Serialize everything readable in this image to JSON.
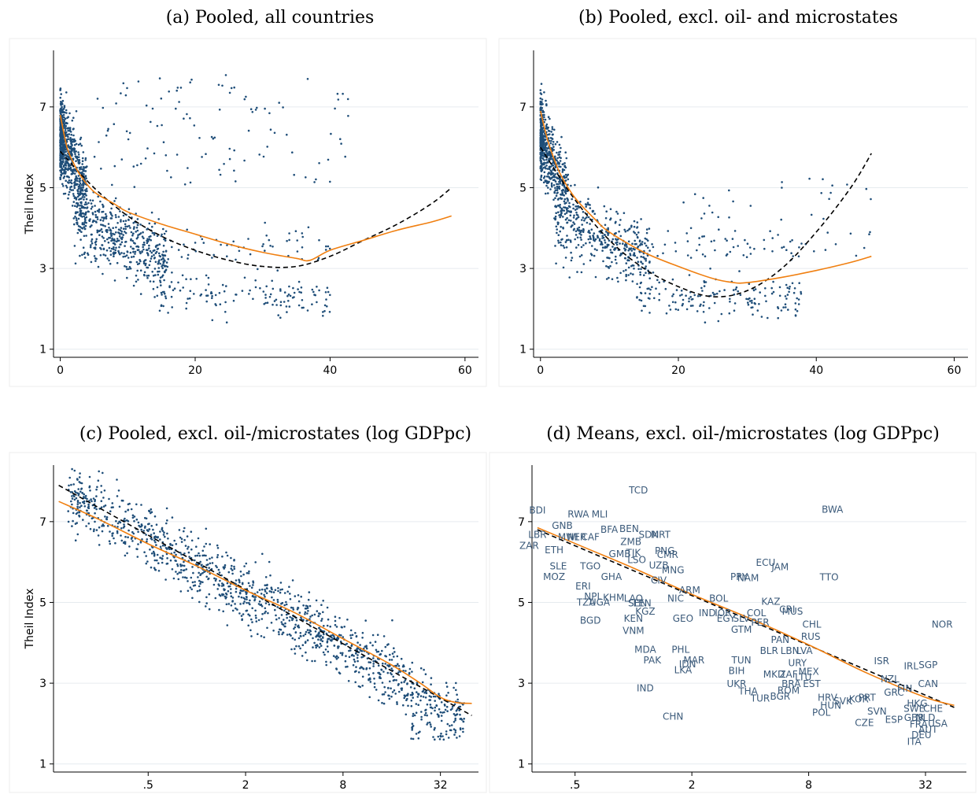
{
  "chart_data": [
    {
      "type": "scatter",
      "title": "(a) Pooled, all countries",
      "xlabel": "",
      "ylabel": "Theil Index",
      "xlim": [
        -1,
        62
      ],
      "ylim": [
        0.8,
        8.4
      ],
      "x_ticks": [
        "0",
        "20",
        "40",
        "60"
      ],
      "x_tick_values": [
        0,
        20,
        40,
        60
      ],
      "y_ticks": [
        "1",
        "3",
        "5",
        "7"
      ],
      "y_tick_values": [
        1,
        3,
        5,
        7
      ],
      "grid": true,
      "series": [
        {
          "kind": "quadratic-fit",
          "color": "#000000",
          "dashed": true,
          "x": [
            0,
            5,
            10,
            15,
            20,
            25,
            30,
            35,
            40,
            45,
            50,
            55,
            58
          ],
          "y": [
            5.9,
            5.0,
            4.3,
            3.8,
            3.45,
            3.2,
            3.05,
            3.05,
            3.3,
            3.7,
            4.1,
            4.6,
            5.0
          ]
        },
        {
          "kind": "lowess",
          "color": "#f07f10",
          "x": [
            0,
            1,
            2,
            3,
            5,
            8,
            10,
            15,
            20,
            25,
            30,
            35,
            37,
            40,
            45,
            50,
            55,
            58
          ],
          "y": [
            6.8,
            6.0,
            5.6,
            5.3,
            4.9,
            4.6,
            4.4,
            4.1,
            3.85,
            3.6,
            3.4,
            3.25,
            3.2,
            3.45,
            3.7,
            3.95,
            4.15,
            4.3
          ]
        }
      ]
    },
    {
      "type": "scatter",
      "title": "(b) Pooled, excl. oil- and microstates",
      "xlabel": "",
      "ylabel": "",
      "xlim": [
        -1,
        62
      ],
      "ylim": [
        0.8,
        8.4
      ],
      "x_ticks": [
        "0",
        "20",
        "40",
        "60"
      ],
      "x_tick_values": [
        0,
        20,
        40,
        60
      ],
      "y_ticks": [
        "1",
        "3",
        "5",
        "7"
      ],
      "y_tick_values": [
        1,
        3,
        5,
        7
      ],
      "grid": true,
      "series": [
        {
          "kind": "quadratic-fit",
          "color": "#000000",
          "dashed": true,
          "x": [
            0,
            5,
            10,
            15,
            20,
            25,
            30,
            35,
            40,
            45,
            48
          ],
          "y": [
            6.0,
            4.7,
            3.7,
            3.0,
            2.55,
            2.3,
            2.45,
            3.0,
            3.9,
            5.0,
            5.85
          ]
        },
        {
          "kind": "lowess",
          "color": "#f07f10",
          "x": [
            0,
            1,
            2,
            3,
            5,
            8,
            10,
            15,
            20,
            25,
            28,
            30,
            35,
            40,
            45,
            48
          ],
          "y": [
            6.9,
            6.2,
            5.7,
            5.3,
            4.75,
            4.2,
            3.9,
            3.4,
            3.05,
            2.75,
            2.65,
            2.65,
            2.78,
            2.95,
            3.15,
            3.3
          ]
        }
      ]
    },
    {
      "type": "scatter",
      "title": "(c) Pooled, excl. oil-/microstates (log GDPpc)",
      "xlabel": "",
      "ylabel": "Theil Index",
      "xlim": [
        0.13,
        55
      ],
      "log_x": true,
      "ylim": [
        0.8,
        8.4
      ],
      "x_ticks": [
        ".5",
        "2",
        "8",
        "32"
      ],
      "x_tick_values": [
        0.5,
        2,
        8,
        32
      ],
      "y_ticks": [
        "1",
        "3",
        "5",
        "7"
      ],
      "y_tick_values": [
        1,
        3,
        5,
        7
      ],
      "grid": true,
      "series": [
        {
          "kind": "linear-fit",
          "color": "#000000",
          "dashed": true,
          "x": [
            0.14,
            50
          ],
          "y": [
            7.9,
            2.2
          ]
        },
        {
          "kind": "lowess",
          "color": "#f07f10",
          "x": [
            0.14,
            0.25,
            0.5,
            1,
            2,
            4,
            8,
            16,
            24,
            32,
            40,
            50
          ],
          "y": [
            7.5,
            7.05,
            6.45,
            5.9,
            5.3,
            4.75,
            4.1,
            3.45,
            3.0,
            2.65,
            2.52,
            2.5
          ]
        }
      ]
    },
    {
      "type": "scatter",
      "title": "(d) Means, excl. oil-/microstates (log GDPpc)",
      "xlabel": "",
      "ylabel": "",
      "xlim": [
        0.3,
        52
      ],
      "log_x": true,
      "ylim": [
        0.8,
        8.4
      ],
      "x_ticks": [
        ".5",
        "2",
        "8",
        "32"
      ],
      "x_tick_values": [
        0.5,
        2,
        8,
        32
      ],
      "y_ticks": [
        "1",
        "3",
        "5",
        "7"
      ],
      "y_tick_values": [
        1,
        3,
        5,
        7
      ],
      "grid": true,
      "series": [
        {
          "kind": "linear-fit",
          "color": "#000000",
          "dashed": true,
          "x": [
            0.32,
            45
          ],
          "y": [
            6.8,
            2.4
          ]
        },
        {
          "kind": "lowess",
          "color": "#f07f10",
          "x": [
            0.32,
            0.6,
            1,
            2,
            4,
            8,
            16,
            32,
            45
          ],
          "y": [
            6.85,
            6.3,
            5.85,
            5.2,
            4.6,
            3.95,
            3.25,
            2.65,
            2.45
          ]
        },
        {
          "kind": "labeled-points",
          "color": "#3b5a7a",
          "points": [
            {
              "label": "TCD",
              "x": 1.06,
              "y": 7.78
            },
            {
              "label": "BDI",
              "x": 0.32,
              "y": 7.28
            },
            {
              "label": "RWA",
              "x": 0.52,
              "y": 7.18
            },
            {
              "label": "MLI",
              "x": 0.67,
              "y": 7.18
            },
            {
              "label": "BWA",
              "x": 10.6,
              "y": 7.3
            },
            {
              "label": "GNB",
              "x": 0.43,
              "y": 6.9
            },
            {
              "label": "BFA",
              "x": 0.75,
              "y": 6.8
            },
            {
              "label": "BEN",
              "x": 0.95,
              "y": 6.82
            },
            {
              "label": "LBR",
              "x": 0.32,
              "y": 6.68
            },
            {
              "label": "MWI",
              "x": 0.46,
              "y": 6.62
            },
            {
              "label": "NER",
              "x": 0.51,
              "y": 6.62
            },
            {
              "label": "CAF",
              "x": 0.6,
              "y": 6.62
            },
            {
              "label": "SDN",
              "x": 1.2,
              "y": 6.68
            },
            {
              "label": "MRT",
              "x": 1.38,
              "y": 6.68
            },
            {
              "label": "ZMB",
              "x": 0.97,
              "y": 6.5
            },
            {
              "label": "ZAR",
              "x": 0.29,
              "y": 6.4
            },
            {
              "label": "ETH",
              "x": 0.39,
              "y": 6.3
            },
            {
              "label": "PNG",
              "x": 1.45,
              "y": 6.28
            },
            {
              "label": "GMB",
              "x": 0.85,
              "y": 6.2
            },
            {
              "label": "TJK",
              "x": 1.0,
              "y": 6.23
            },
            {
              "label": "CMR",
              "x": 1.5,
              "y": 6.18
            },
            {
              "label": "LSO",
              "x": 1.04,
              "y": 6.05
            },
            {
              "label": "TGO",
              "x": 0.6,
              "y": 5.9
            },
            {
              "label": "UZB",
              "x": 1.35,
              "y": 5.92
            },
            {
              "label": "SLE",
              "x": 0.41,
              "y": 5.9
            },
            {
              "label": "ECU",
              "x": 4.8,
              "y": 5.98
            },
            {
              "label": "JAM",
              "x": 5.7,
              "y": 5.88
            },
            {
              "label": "MNG",
              "x": 1.6,
              "y": 5.8
            },
            {
              "label": "MOZ",
              "x": 0.39,
              "y": 5.63
            },
            {
              "label": "GHA",
              "x": 0.77,
              "y": 5.63
            },
            {
              "label": "PRY",
              "x": 3.5,
              "y": 5.63
            },
            {
              "label": "NAM",
              "x": 3.9,
              "y": 5.6
            },
            {
              "label": "TTO",
              "x": 10.2,
              "y": 5.62
            },
            {
              "label": "CIV",
              "x": 1.35,
              "y": 5.55
            },
            {
              "label": "ERI",
              "x": 0.55,
              "y": 5.4
            },
            {
              "label": "ARM",
              "x": 1.95,
              "y": 5.3
            },
            {
              "label": "NPL",
              "x": 0.62,
              "y": 5.15
            },
            {
              "label": "KHM",
              "x": 0.79,
              "y": 5.12
            },
            {
              "label": "LAO",
              "x": 1.0,
              "y": 5.1
            },
            {
              "label": "NIC",
              "x": 1.65,
              "y": 5.1
            },
            {
              "label": "BOL",
              "x": 2.75,
              "y": 5.1
            },
            {
              "label": "TZA",
              "x": 0.57,
              "y": 5.0
            },
            {
              "label": "UGA",
              "x": 0.67,
              "y": 5.0
            },
            {
              "label": "SEN",
              "x": 1.05,
              "y": 4.98
            },
            {
              "label": "LEN",
              "x": 1.11,
              "y": 4.98
            },
            {
              "label": "KAZ",
              "x": 5.1,
              "y": 5.02
            },
            {
              "label": "CRI",
              "x": 6.2,
              "y": 4.82
            },
            {
              "label": "MUS",
              "x": 6.6,
              "y": 4.78
            },
            {
              "label": "IND",
              "x": 2.4,
              "y": 4.74
            },
            {
              "label": "IOR",
              "x": 2.9,
              "y": 4.74
            },
            {
              "label": "COL",
              "x": 4.3,
              "y": 4.74
            },
            {
              "label": "KGZ",
              "x": 1.15,
              "y": 4.78
            },
            {
              "label": "KEN",
              "x": 1.0,
              "y": 4.6
            },
            {
              "label": "GEO",
              "x": 1.8,
              "y": 4.6
            },
            {
              "label": "BGD",
              "x": 0.6,
              "y": 4.55
            },
            {
              "label": "EGY",
              "x": 3.0,
              "y": 4.6
            },
            {
              "label": "SLV",
              "x": 3.6,
              "y": 4.6
            },
            {
              "label": "PER",
              "x": 4.5,
              "y": 4.5
            },
            {
              "label": "CHL",
              "x": 8.3,
              "y": 4.45
            },
            {
              "label": "NOR",
              "x": 39.0,
              "y": 4.45
            },
            {
              "label": "GTM",
              "x": 3.6,
              "y": 4.33
            },
            {
              "label": "VNM",
              "x": 1.0,
              "y": 4.3
            },
            {
              "label": "RUS",
              "x": 8.2,
              "y": 4.15
            },
            {
              "label": "PAN",
              "x": 5.7,
              "y": 4.07
            },
            {
              "label": "MDA",
              "x": 1.15,
              "y": 3.83
            },
            {
              "label": "PHL",
              "x": 1.75,
              "y": 3.83
            },
            {
              "label": "BLR",
              "x": 5.0,
              "y": 3.8
            },
            {
              "label": "LBN",
              "x": 6.4,
              "y": 3.8
            },
            {
              "label": "LVA",
              "x": 7.6,
              "y": 3.8
            },
            {
              "label": "PAK",
              "x": 1.25,
              "y": 3.57
            },
            {
              "label": "MAR",
              "x": 2.05,
              "y": 3.57
            },
            {
              "label": "TUN",
              "x": 3.6,
              "y": 3.57
            },
            {
              "label": "ISR",
              "x": 19.0,
              "y": 3.55
            },
            {
              "label": "IDN",
              "x": 1.9,
              "y": 3.47
            },
            {
              "label": "URY",
              "x": 7.0,
              "y": 3.5
            },
            {
              "label": "IRL",
              "x": 27.0,
              "y": 3.42
            },
            {
              "label": "SGP",
              "x": 33.0,
              "y": 3.45
            },
            {
              "label": "LKA",
              "x": 1.8,
              "y": 3.32
            },
            {
              "label": "BIH",
              "x": 3.4,
              "y": 3.3
            },
            {
              "label": "MKD",
              "x": 5.3,
              "y": 3.22
            },
            {
              "label": "ZAF",
              "x": 6.3,
              "y": 3.22
            },
            {
              "label": "MEX",
              "x": 8.0,
              "y": 3.28
            },
            {
              "label": "LTU",
              "x": 7.5,
              "y": 3.15
            },
            {
              "label": "NZL",
              "x": 21.0,
              "y": 3.1
            },
            {
              "label": "EST",
              "x": 8.3,
              "y": 2.98
            },
            {
              "label": "CAN",
              "x": 33.0,
              "y": 2.98
            },
            {
              "label": "UKR",
              "x": 3.4,
              "y": 2.98
            },
            {
              "label": "BRA",
              "x": 6.5,
              "y": 2.98
            },
            {
              "label": "FIN",
              "x": 25.0,
              "y": 2.87
            },
            {
              "label": "GRC",
              "x": 22.0,
              "y": 2.77
            },
            {
              "label": "IND",
              "x": 1.15,
              "y": 2.88
            },
            {
              "label": "THA",
              "x": 3.9,
              "y": 2.8
            },
            {
              "label": "ROM",
              "x": 6.3,
              "y": 2.82
            },
            {
              "label": "BGR",
              "x": 5.7,
              "y": 2.67
            },
            {
              "label": "TUR",
              "x": 4.5,
              "y": 2.62
            },
            {
              "label": "HRV",
              "x": 10.0,
              "y": 2.64
            },
            {
              "label": "PRT",
              "x": 16.0,
              "y": 2.64
            },
            {
              "label": "SVK",
              "x": 12.0,
              "y": 2.55
            },
            {
              "label": "KOR",
              "x": 14.5,
              "y": 2.6
            },
            {
              "label": "HUN",
              "x": 10.4,
              "y": 2.45
            },
            {
              "label": "HKG",
              "x": 29.0,
              "y": 2.5
            },
            {
              "label": "SWE",
              "x": 28.0,
              "y": 2.37
            },
            {
              "label": "CHE",
              "x": 35.0,
              "y": 2.37
            },
            {
              "label": "POL",
              "x": 9.3,
              "y": 2.27
            },
            {
              "label": "SVN",
              "x": 18.0,
              "y": 2.3
            },
            {
              "label": "GBR",
              "x": 28.0,
              "y": 2.14
            },
            {
              "label": "NLD",
              "x": 32.0,
              "y": 2.14
            },
            {
              "label": "ESP",
              "x": 22.0,
              "y": 2.1
            },
            {
              "label": "CZE",
              "x": 15.5,
              "y": 2.02
            },
            {
              "label": "FRA",
              "x": 29.5,
              "y": 1.98
            },
            {
              "label": "USA",
              "x": 37.0,
              "y": 2.0
            },
            {
              "label": "AUT",
              "x": 33.0,
              "y": 1.85
            },
            {
              "label": "DEU",
              "x": 30.5,
              "y": 1.72
            },
            {
              "label": "ITA",
              "x": 28.0,
              "y": 1.55
            },
            {
              "label": "CHN",
              "x": 1.6,
              "y": 2.17
            }
          ]
        }
      ]
    }
  ]
}
